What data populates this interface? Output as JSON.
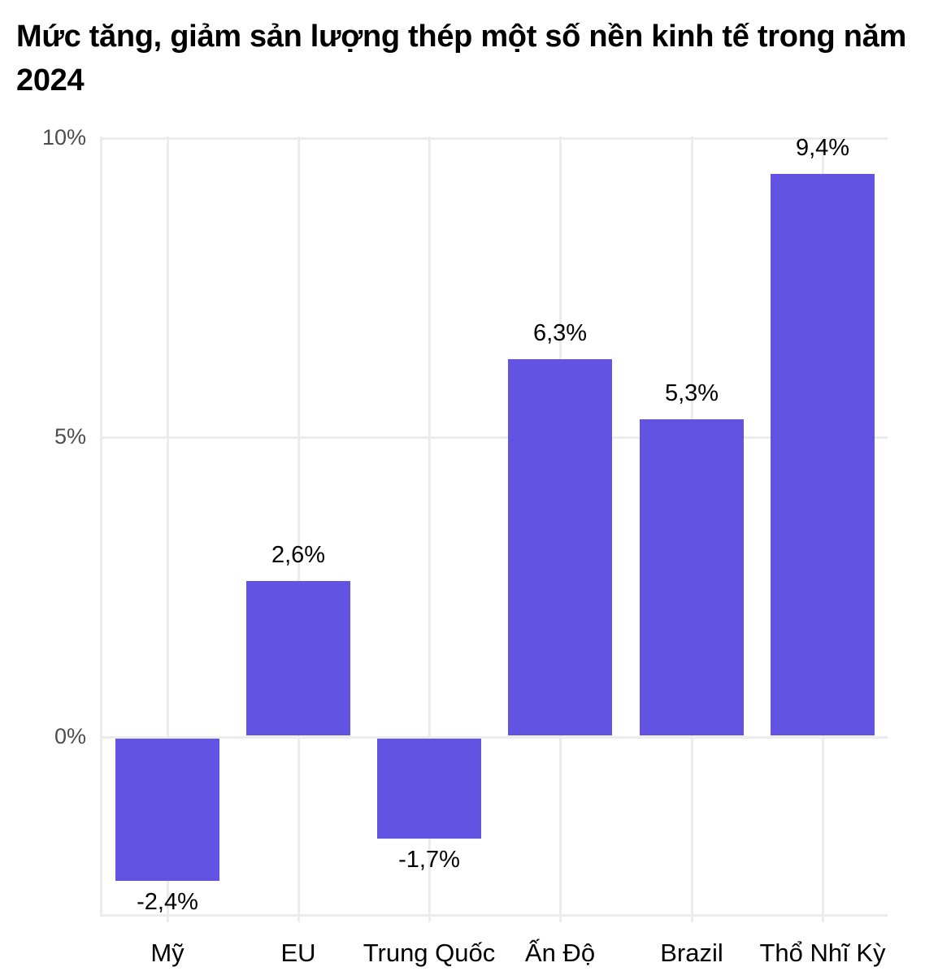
{
  "title": "Mức tăng, giảm sản lượng thép một số nền kinh tế trong năm 2024",
  "y_ticks": [
    "10%",
    "5%",
    "0%"
  ],
  "bars": [
    {
      "category": "Mỹ",
      "value": -2.4,
      "label": "-2,4%"
    },
    {
      "category": "EU",
      "value": 2.6,
      "label": "2,6%"
    },
    {
      "category": "Trung Quốc",
      "value": -1.7,
      "label": "-1,7%"
    },
    {
      "category": "Ấn Độ",
      "value": 6.3,
      "label": "6,3%"
    },
    {
      "category": "Brazil",
      "value": 5.3,
      "label": "5,3%"
    },
    {
      "category": "Thổ Nhĩ Kỳ",
      "value": 9.4,
      "label": "9,4%"
    }
  ],
  "colors": {
    "bar": "#6353e2",
    "grid": "#ececec",
    "tick_text": "#4d4d4d"
  },
  "chart_data": {
    "type": "bar",
    "title": "Mức tăng, giảm sản lượng thép một số nền kinh tế trong năm 2024",
    "categories": [
      "Mỹ",
      "EU",
      "Trung Quốc",
      "Ấn Độ",
      "Brazil",
      "Thổ Nhĩ Kỳ"
    ],
    "values": [
      -2.4,
      2.6,
      -1.7,
      6.3,
      5.3,
      9.4
    ],
    "data_labels": [
      "-2,4%",
      "2,6%",
      "-1,7%",
      "6,3%",
      "5,3%",
      "9,4%"
    ],
    "xlabel": "",
    "ylabel": "",
    "y_tick_labels": [
      "0%",
      "5%",
      "10%"
    ],
    "ylim": [
      -2.9,
      10
    ],
    "grid": true,
    "legend": "none",
    "unit": "%"
  }
}
